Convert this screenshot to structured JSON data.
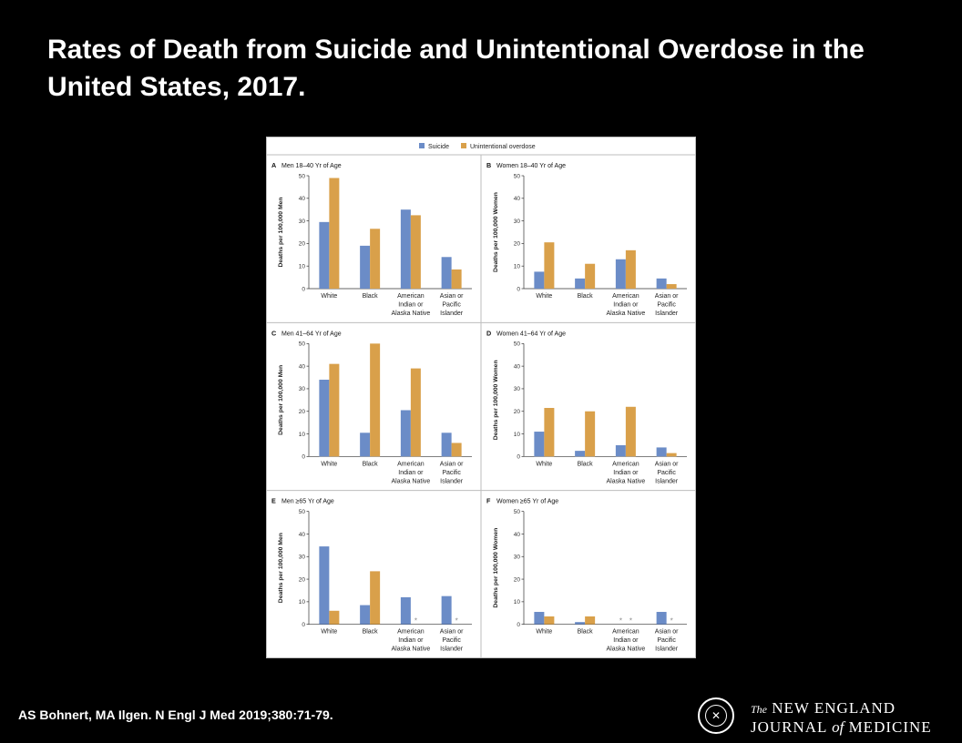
{
  "slide": {
    "title": "Rates of Death from Suicide and Unintentional Overdose in the United States, 2017.",
    "citation": "AS Bohnert, MA Ilgen. N Engl J Med 2019;380:71-79.",
    "publisher_line1_the": "The",
    "publisher_line1_name": "NEW ENGLAND",
    "publisher_line2_a": "JOURNAL",
    "publisher_line2_of": "of",
    "publisher_line2_b": "MEDICINE"
  },
  "legend": [
    {
      "name": "Suicide",
      "color": "#6b8cc7"
    },
    {
      "name": "Unintentional overdose",
      "color": "#d9a04a"
    }
  ],
  "chart_data": [
    {
      "type": "bar",
      "panel": "A",
      "title": "Men 18–40 Yr of Age",
      "ylabel": "Deaths per 100,000 Men",
      "ylim": [
        0,
        50
      ],
      "yticks": [
        "0",
        "10",
        "20",
        "30",
        "40",
        "50"
      ],
      "categories": [
        [
          "White"
        ],
        [
          "Black"
        ],
        [
          "American",
          "Indian or",
          "Alaska Native"
        ],
        [
          "Asian or",
          "Pacific",
          "Islander"
        ]
      ],
      "series": [
        {
          "name": "Suicide",
          "values": [
            29.5,
            19.0,
            35.0,
            14.0
          ]
        },
        {
          "name": "Unintentional overdose",
          "values": [
            49.0,
            26.5,
            32.5,
            8.5
          ]
        }
      ],
      "suppressed_marker": "*"
    },
    {
      "type": "bar",
      "panel": "B",
      "title": "Women 18–40 Yr of Age",
      "ylabel": "Deaths per 100,000 Women",
      "ylim": [
        0,
        50
      ],
      "yticks": [
        "0",
        "10",
        "20",
        "30",
        "40",
        "50"
      ],
      "categories": [
        [
          "White"
        ],
        [
          "Black"
        ],
        [
          "American",
          "Indian or",
          "Alaska Native"
        ],
        [
          "Asian or",
          "Pacific",
          "Islander"
        ]
      ],
      "series": [
        {
          "name": "Suicide",
          "values": [
            7.5,
            4.5,
            13.0,
            4.5
          ]
        },
        {
          "name": "Unintentional overdose",
          "values": [
            20.5,
            11.0,
            17.0,
            2.0
          ]
        }
      ],
      "suppressed_marker": "*"
    },
    {
      "type": "bar",
      "panel": "C",
      "title": "Men 41–64 Yr of Age",
      "ylabel": "Deaths per 100,000 Men",
      "ylim": [
        0,
        50
      ],
      "yticks": [
        "0",
        "10",
        "20",
        "30",
        "40",
        "50"
      ],
      "categories": [
        [
          "White"
        ],
        [
          "Black"
        ],
        [
          "American",
          "Indian or",
          "Alaska Native"
        ],
        [
          "Asian or",
          "Pacific",
          "Islander"
        ]
      ],
      "series": [
        {
          "name": "Suicide",
          "values": [
            34.0,
            10.5,
            20.5,
            10.5
          ]
        },
        {
          "name": "Unintentional overdose",
          "values": [
            41.0,
            50.0,
            39.0,
            6.0
          ]
        }
      ],
      "suppressed_marker": "*"
    },
    {
      "type": "bar",
      "panel": "D",
      "title": "Women 41–64 Yr of Age",
      "ylabel": "Deaths per 100,000 Women",
      "ylim": [
        0,
        50
      ],
      "yticks": [
        "0",
        "10",
        "20",
        "30",
        "40",
        "50"
      ],
      "categories": [
        [
          "White"
        ],
        [
          "Black"
        ],
        [
          "American",
          "Indian or",
          "Alaska Native"
        ],
        [
          "Asian or",
          "Pacific",
          "Islander"
        ]
      ],
      "series": [
        {
          "name": "Suicide",
          "values": [
            11.0,
            2.5,
            5.0,
            4.0
          ]
        },
        {
          "name": "Unintentional overdose",
          "values": [
            21.5,
            20.0,
            22.0,
            1.5
          ]
        }
      ],
      "suppressed_marker": "*"
    },
    {
      "type": "bar",
      "panel": "E",
      "title": "Men ≥65 Yr of Age",
      "ylabel": "Deaths per 100,000 Men",
      "ylim": [
        0,
        50
      ],
      "yticks": [
        "0",
        "10",
        "20",
        "30",
        "40",
        "50"
      ],
      "categories": [
        [
          "White"
        ],
        [
          "Black"
        ],
        [
          "American",
          "Indian or",
          "Alaska Native"
        ],
        [
          "Asian or",
          "Pacific",
          "Islander"
        ]
      ],
      "series": [
        {
          "name": "Suicide",
          "values": [
            34.5,
            8.5,
            12.0,
            12.5
          ]
        },
        {
          "name": "Unintentional overdose",
          "values": [
            6.0,
            23.5,
            null,
            null
          ]
        }
      ],
      "suppressed_marker": "*"
    },
    {
      "type": "bar",
      "panel": "F",
      "title": "Women ≥65 Yr of Age",
      "ylabel": "Deaths per 100,000 Women",
      "ylim": [
        0,
        50
      ],
      "yticks": [
        "0",
        "10",
        "20",
        "30",
        "40",
        "50"
      ],
      "categories": [
        [
          "White"
        ],
        [
          "Black"
        ],
        [
          "American",
          "Indian or",
          "Alaska Native"
        ],
        [
          "Asian or",
          "Pacific",
          "Islander"
        ]
      ],
      "series": [
        {
          "name": "Suicide",
          "values": [
            5.5,
            1.0,
            null,
            5.5
          ]
        },
        {
          "name": "Unintentional overdose",
          "values": [
            3.5,
            3.5,
            null,
            null
          ]
        }
      ],
      "suppressed_marker": "*"
    }
  ]
}
